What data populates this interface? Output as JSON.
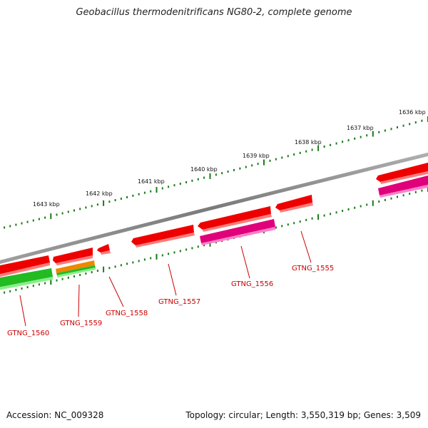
{
  "title": "Geobacillus thermodenitrificans NG80-2, complete genome",
  "footer": {
    "accession": "Accession: NC_009328",
    "summary": "Topology: circular; Length: 3,550,319 bp; Genes: 3,509"
  },
  "ruler_labels": [
    "1636 kbp",
    "1637 kbp",
    "1638 kbp",
    "1639 kbp",
    "1640 kbp",
    "1641 kbp",
    "1642 kbp",
    "1643 kbp"
  ],
  "gene_labels": [
    "GTNG_1555",
    "GTNG_1556",
    "GTNG_1557",
    "GTNG_1558",
    "GTNG_1559",
    "GTNG_1560"
  ],
  "colors": {
    "backbone": "#808080",
    "gene_red": "#ee0000",
    "gene_magenta": "#e0007a",
    "gene_green": "#22bb22",
    "gene_orange": "#ee8800",
    "tick_green": "#1a7a1a",
    "label_red": "#cc0000"
  }
}
